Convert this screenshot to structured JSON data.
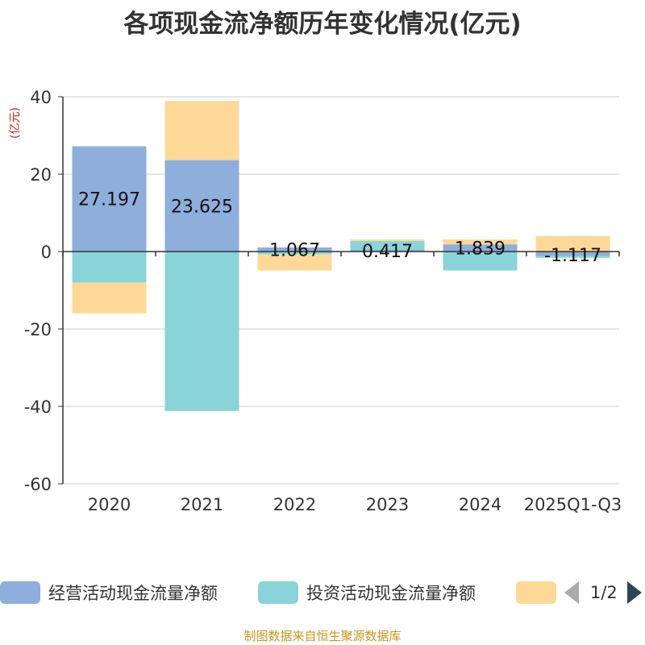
{
  "chart_data": {
    "type": "bar",
    "title": "各项现金流净额历年变化情况(亿元)",
    "ylabel": "(亿元)",
    "categories": [
      "2020",
      "2021",
      "2022",
      "2023",
      "2024",
      "2025Q1-Q3"
    ],
    "ylim": [
      -60,
      40
    ],
    "yticks": [
      -60,
      -40,
      -20,
      0,
      20,
      40
    ],
    "grid": true,
    "stacked": true,
    "legend_position": "bottom",
    "series": [
      {
        "name": "经营活动现金流量净额",
        "color": "#8eaedb",
        "values": [
          27.197,
          23.625,
          1.067,
          0.417,
          1.839,
          -1.117
        ],
        "labels": [
          "27.197",
          "23.625",
          "1.067",
          "0.417",
          "1.839",
          "-1.117"
        ]
      },
      {
        "name": "投资活动现金流量净额",
        "color": "#88d4d8",
        "values": [
          -8.0,
          -41.2,
          -0.7,
          2.3,
          -4.9,
          -0.5
        ]
      },
      {
        "name": "",
        "color": "#fed897",
        "values": [
          -8.0,
          15.3,
          -4.2,
          0.4,
          1.3,
          4.0
        ]
      }
    ]
  },
  "legend": {
    "items": [
      {
        "label": "经营活动现金流量净额",
        "color": "#8eaedb"
      },
      {
        "label": "投资活动现金流量净额",
        "color": "#88d4d8"
      },
      {
        "label": "",
        "color": "#fed897"
      }
    ],
    "page": "1/2"
  },
  "source": "制图数据来自恒生聚源数据库"
}
